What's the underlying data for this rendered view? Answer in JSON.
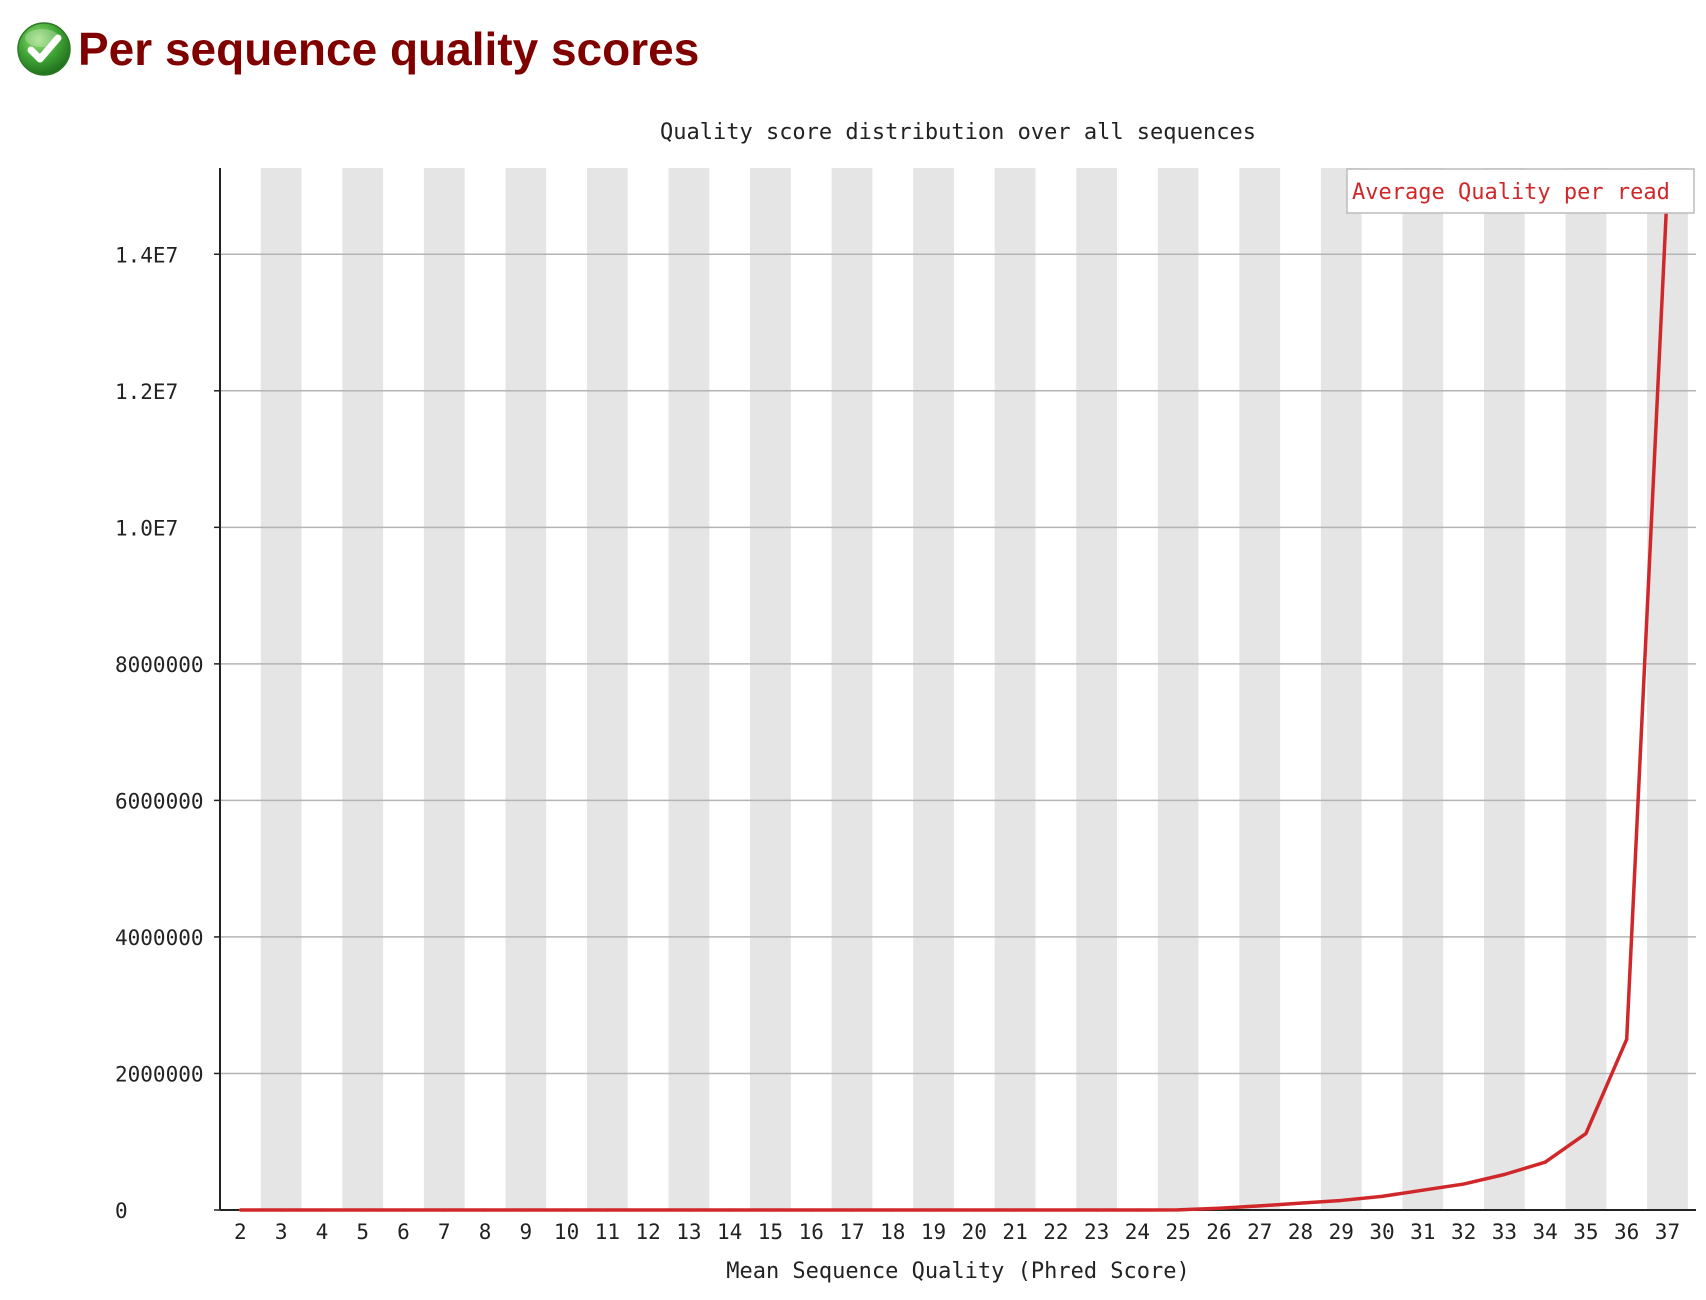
{
  "header": {
    "title": "Per sequence quality scores",
    "status_icon": "pass-check-icon",
    "status_color": "#3fa535"
  },
  "chart_data": {
    "type": "line",
    "title": "Quality score distribution over all sequences",
    "xlabel": "Mean Sequence Quality (Phred Score)",
    "ylabel": "",
    "categories": [
      2,
      3,
      4,
      5,
      6,
      7,
      8,
      9,
      10,
      11,
      12,
      13,
      14,
      15,
      16,
      17,
      18,
      19,
      20,
      21,
      22,
      23,
      24,
      25,
      26,
      27,
      28,
      29,
      30,
      31,
      32,
      33,
      34,
      35,
      36,
      37
    ],
    "ylim": [
      0,
      15000000
    ],
    "y_ticks": [
      {
        "value": 0,
        "label": "0"
      },
      {
        "value": 2000000,
        "label": "2000000"
      },
      {
        "value": 4000000,
        "label": "4000000"
      },
      {
        "value": 6000000,
        "label": "6000000"
      },
      {
        "value": 8000000,
        "label": "8000000"
      },
      {
        "value": 10000000,
        "label": "1.0E7"
      },
      {
        "value": 12000000,
        "label": "1.2E7"
      },
      {
        "value": 14000000,
        "label": "1.4E7"
      }
    ],
    "series": [
      {
        "name": "Average Quality per read",
        "color": "#d0282a",
        "values": [
          0,
          0,
          0,
          0,
          0,
          0,
          0,
          0,
          0,
          0,
          0,
          0,
          0,
          0,
          0,
          0,
          0,
          0,
          0,
          0,
          0,
          0,
          0,
          2000,
          25000,
          60000,
          100000,
          140000,
          200000,
          290000,
          380000,
          520000,
          700000,
          1120000,
          2500000,
          15000000
        ]
      }
    ],
    "legend_position": "top-right",
    "grid": true,
    "alternating_bands": true,
    "band_color": "#e5e5e5"
  }
}
